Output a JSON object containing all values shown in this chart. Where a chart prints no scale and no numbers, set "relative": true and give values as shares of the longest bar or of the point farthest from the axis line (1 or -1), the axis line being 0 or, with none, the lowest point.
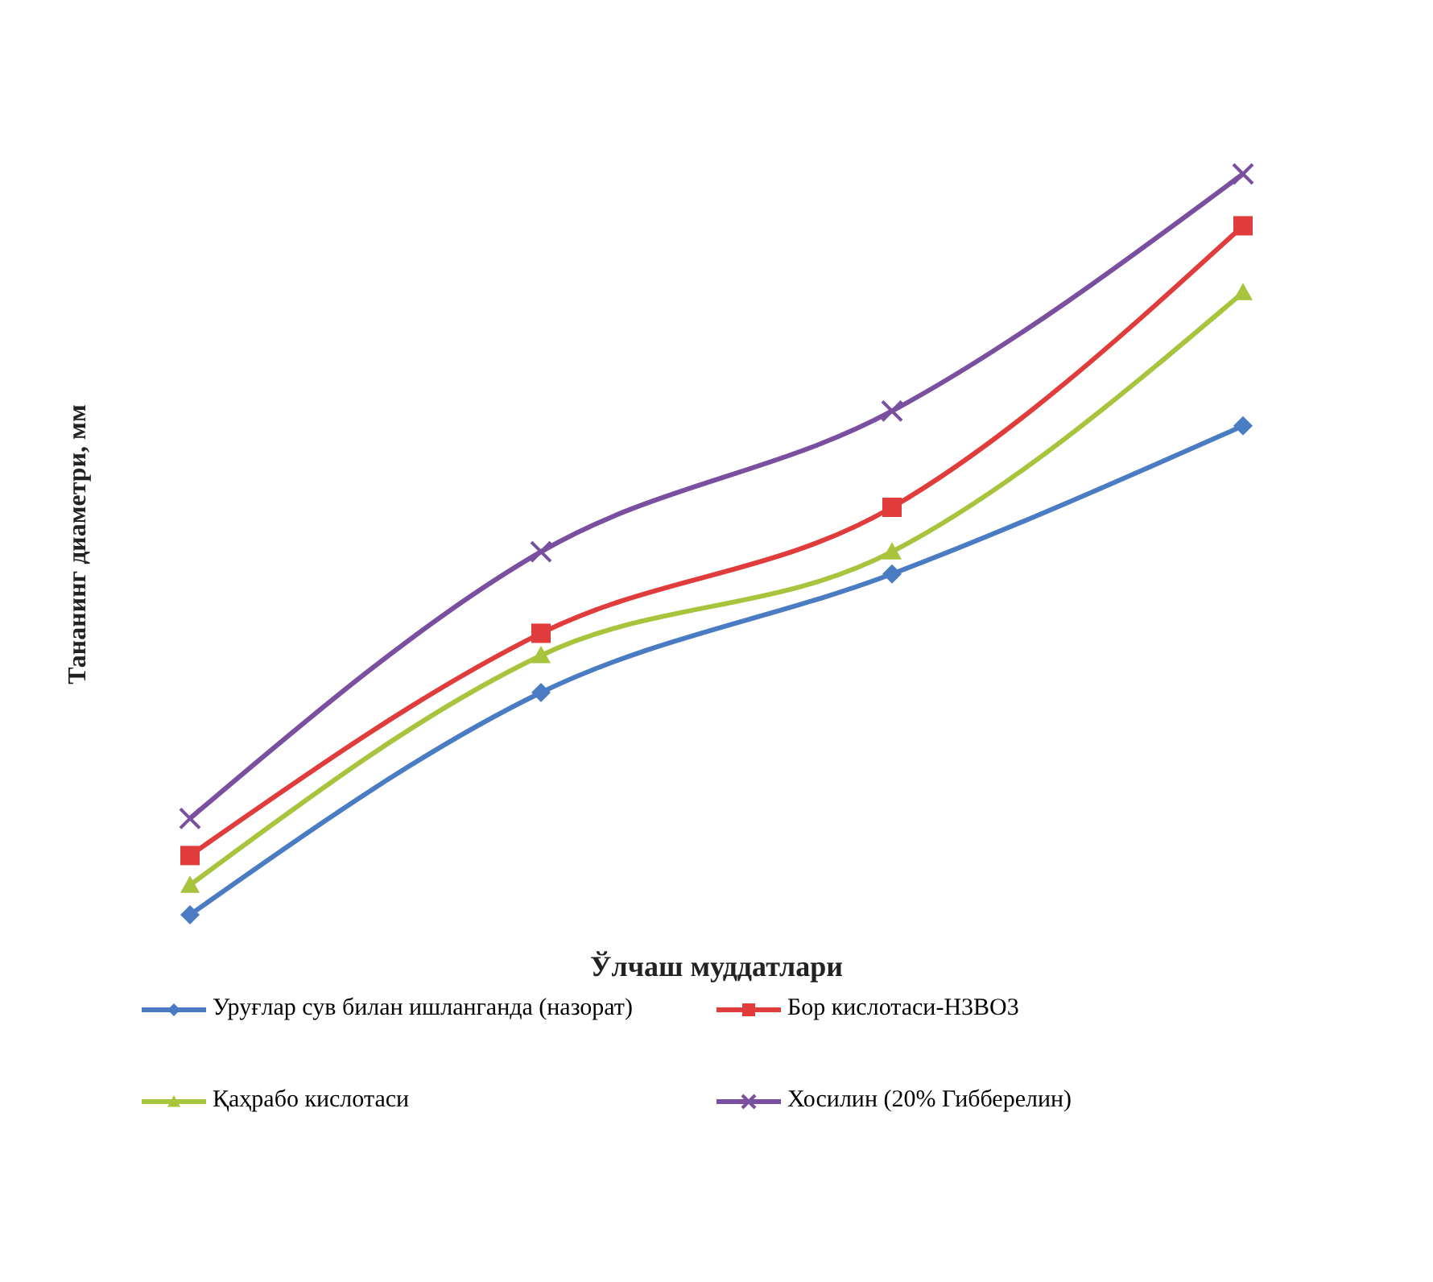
{
  "chart_data": {
    "type": "line",
    "relative": true,
    "xlabel": "Ўлчаш муддатлари",
    "ylabel": "Тананинг диаметри, мм",
    "categories": [
      null,
      null,
      null,
      null
    ],
    "legend": "bottom",
    "series": [
      {
        "name": "Уруғлар сув билан ишланганда (назорат)",
        "color": "#4a7cc4",
        "marker": "diamond",
        "values": [
          0,
          0.3,
          0.46,
          0.66
        ]
      },
      {
        "name": "Бор кислотаси-Н3ВО3",
        "color": "#e03c3c",
        "marker": "square",
        "values": [
          0.08,
          0.38,
          0.55,
          0.93
        ]
      },
      {
        "name": "Қаҳрабо кислотаси",
        "color": "#a8c43c",
        "marker": "triangle",
        "values": [
          0.04,
          0.35,
          0.49,
          0.84
        ]
      },
      {
        "name": "Хосилин (20% Гибберелин)",
        "color": "#7a4fa0",
        "marker": "cross",
        "values": [
          0.13,
          0.49,
          0.68,
          1
        ]
      }
    ]
  }
}
